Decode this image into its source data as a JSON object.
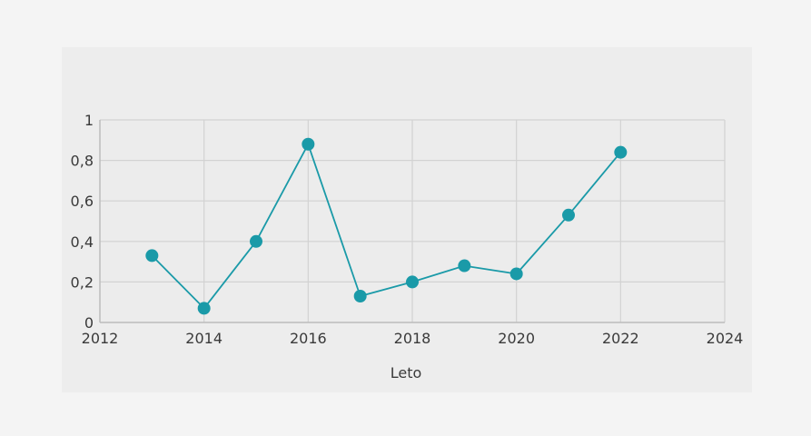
{
  "chart_data": {
    "type": "line",
    "title": "",
    "xlabel": "Leto",
    "ylabel": "",
    "xlim": [
      2012,
      2024
    ],
    "ylim": [
      0,
      1
    ],
    "x_ticks": [
      2012,
      2014,
      2016,
      2018,
      2020,
      2022,
      2024
    ],
    "y_ticks": [
      0,
      0.2,
      0.4,
      0.6,
      0.8,
      1
    ],
    "y_tick_labels": [
      "0",
      "0,2",
      "0,4",
      "0,6",
      "0,8",
      "1"
    ],
    "grid": true,
    "legend": "none",
    "series": [
      {
        "color": "#1a9aa8",
        "x": [
          2013,
          2014,
          2015,
          2016,
          2017,
          2018,
          2019,
          2020,
          2021,
          2022
        ],
        "y": [
          0.33,
          0.07,
          0.4,
          0.88,
          0.13,
          0.2,
          0.28,
          0.24,
          0.53,
          0.84
        ]
      }
    ]
  }
}
